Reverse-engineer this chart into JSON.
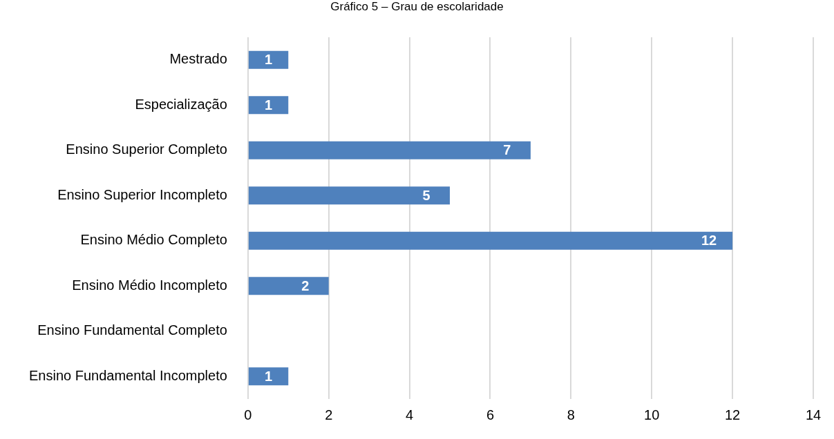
{
  "chart_data": {
    "type": "bar",
    "orientation": "horizontal",
    "title": "Gráfico 5 – Grau de escolaridade",
    "categories": [
      "Mestrado",
      "Especialização",
      "Ensino Superior Completo",
      "Ensino Superior Incompleto",
      "Ensino Médio Completo",
      "Ensino Médio Incompleto",
      "Ensino Fundamental Completo",
      "Ensino Fundamental Incompleto"
    ],
    "values": [
      1,
      1,
      7,
      5,
      12,
      2,
      null,
      1
    ],
    "color": "#4f81bd",
    "xlim": [
      0,
      14
    ],
    "xticks": [
      0,
      2,
      4,
      6,
      8,
      10,
      12,
      14
    ],
    "grid": "x",
    "data_labels": true,
    "legend": false
  }
}
